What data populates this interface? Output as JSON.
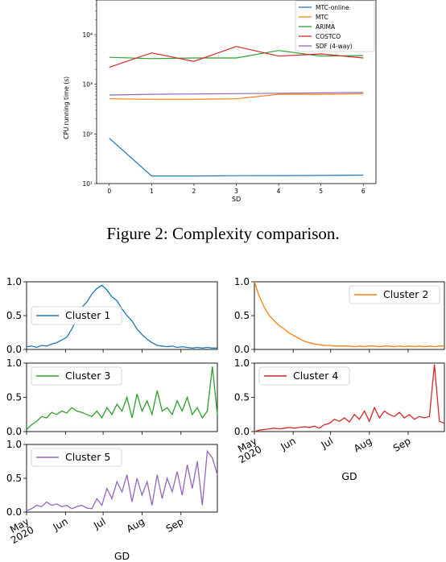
{
  "caption": "Figure 2: Complexity comparison.",
  "chart_data": [
    {
      "type": "line",
      "xlabel": "SD",
      "ylabel": "CPU running time (s)",
      "yscale": "log",
      "xlim": [
        -0.3,
        6.3
      ],
      "ylim": [
        10,
        50000
      ],
      "x_ticks": [
        0,
        1,
        2,
        3,
        4,
        5,
        6
      ],
      "y_ticks": [
        {
          "value": 10,
          "label": "10¹"
        },
        {
          "value": 100,
          "label": "10²"
        },
        {
          "value": 1000,
          "label": "10³"
        },
        {
          "value": 10000,
          "label": "10⁴"
        }
      ],
      "legend_position": "top-right",
      "x": [
        0,
        1,
        2,
        3,
        4,
        5,
        6
      ],
      "series": [
        {
          "name": "MTC-online",
          "color": "#1f77b4",
          "values": [
            82,
            14.2,
            14.2,
            14.4,
            14.5,
            14.6,
            14.8
          ]
        },
        {
          "name": "MTC",
          "color": "#ff7f0e",
          "values": [
            510,
            500,
            500,
            510,
            630,
            630,
            650
          ]
        },
        {
          "name": "ARIMA",
          "color": "#2ca02c",
          "values": [
            3500,
            3300,
            3400,
            3400,
            4800,
            3700,
            3800
          ]
        },
        {
          "name": "COSTCO",
          "color": "#d62728",
          "values": [
            2200,
            4300,
            2900,
            5800,
            3700,
            4100,
            3400
          ]
        },
        {
          "name": "SDF (4-way)",
          "color": "#9467bd",
          "values": [
            610,
            630,
            640,
            650,
            660,
            670,
            690
          ]
        }
      ]
    },
    {
      "type": "line",
      "grid": false,
      "ylim": [
        0,
        1
      ],
      "y_ticks": [
        "0.0",
        "0.5",
        "1.0"
      ],
      "x_ticks": [
        {
          "line1": "May",
          "line2": "2020"
        },
        {
          "line1": "Jun",
          "line2": ""
        },
        {
          "line1": "Jul",
          "line2": ""
        },
        {
          "line1": "Aug",
          "line2": ""
        },
        {
          "line1": "Sep",
          "line2": ""
        }
      ],
      "xlabel": "GD",
      "panels": [
        {
          "name": "Cluster 1",
          "color": "#1f77b4",
          "legend_position": "center-left",
          "x": [
            0,
            4,
            8,
            12,
            16,
            20,
            24,
            28,
            32,
            36,
            40,
            44,
            48,
            52,
            56,
            60,
            64,
            68,
            72,
            76,
            80,
            84,
            88,
            92,
            96,
            100,
            104,
            108,
            112,
            116,
            120,
            124,
            128,
            132,
            136,
            140,
            144,
            148,
            152
          ],
          "values": [
            0.04,
            0.05,
            0.03,
            0.06,
            0.05,
            0.08,
            0.1,
            0.14,
            0.18,
            0.3,
            0.45,
            0.62,
            0.7,
            0.82,
            0.9,
            0.95,
            0.88,
            0.78,
            0.72,
            0.6,
            0.5,
            0.42,
            0.3,
            0.22,
            0.15,
            0.1,
            0.06,
            0.05,
            0.04,
            0.05,
            0.03,
            0.04,
            0.03,
            0.02,
            0.03,
            0.02,
            0.03,
            0.02,
            0.02
          ]
        },
        {
          "name": "Cluster 2",
          "color": "#ff7f0e",
          "legend_position": "top-right",
          "x": [
            0,
            4,
            8,
            12,
            16,
            20,
            24,
            28,
            32,
            36,
            40,
            44,
            48,
            52,
            56,
            60,
            64,
            68,
            72,
            76,
            80,
            84,
            88,
            92,
            96,
            100,
            104,
            108,
            112,
            116,
            120,
            124,
            128,
            132,
            136,
            140,
            144,
            148,
            152
          ],
          "values": [
            1.0,
            0.78,
            0.62,
            0.5,
            0.42,
            0.35,
            0.3,
            0.24,
            0.2,
            0.16,
            0.12,
            0.1,
            0.08,
            0.07,
            0.06,
            0.06,
            0.05,
            0.05,
            0.05,
            0.05,
            0.04,
            0.05,
            0.04,
            0.05,
            0.05,
            0.04,
            0.05,
            0.05,
            0.04,
            0.05,
            0.04,
            0.05,
            0.04,
            0.05,
            0.04,
            0.05,
            0.04,
            0.05,
            0.05
          ]
        },
        {
          "name": "Cluster 3",
          "color": "#2ca02c",
          "legend_position": "top-left",
          "x": [
            0,
            4,
            8,
            12,
            16,
            20,
            24,
            28,
            32,
            36,
            40,
            44,
            48,
            52,
            56,
            60,
            64,
            68,
            72,
            76,
            80,
            84,
            88,
            92,
            96,
            100,
            104,
            108,
            112,
            116,
            120,
            124,
            128,
            132,
            136,
            140,
            144,
            148,
            152
          ],
          "values": [
            0.03,
            0.1,
            0.15,
            0.22,
            0.2,
            0.28,
            0.25,
            0.3,
            0.27,
            0.35,
            0.3,
            0.28,
            0.25,
            0.22,
            0.3,
            0.2,
            0.35,
            0.25,
            0.4,
            0.3,
            0.5,
            0.2,
            0.55,
            0.3,
            0.45,
            0.25,
            0.6,
            0.3,
            0.35,
            0.25,
            0.45,
            0.3,
            0.5,
            0.25,
            0.35,
            0.2,
            0.3,
            0.95,
            0.25
          ]
        },
        {
          "name": "Cluster 4",
          "color": "#d62728",
          "legend_position": "top-left",
          "x": [
            0,
            4,
            8,
            12,
            16,
            20,
            24,
            28,
            32,
            36,
            40,
            44,
            48,
            52,
            56,
            60,
            64,
            68,
            72,
            76,
            80,
            84,
            88,
            92,
            96,
            100,
            104,
            108,
            112,
            116,
            120,
            124,
            128,
            132,
            136,
            140,
            144,
            148,
            152
          ],
          "values": [
            0.0,
            0.02,
            0.03,
            0.04,
            0.05,
            0.04,
            0.05,
            0.06,
            0.05,
            0.06,
            0.07,
            0.06,
            0.08,
            0.05,
            0.1,
            0.12,
            0.18,
            0.15,
            0.2,
            0.14,
            0.25,
            0.18,
            0.3,
            0.15,
            0.35,
            0.2,
            0.3,
            0.25,
            0.22,
            0.28,
            0.2,
            0.25,
            0.18,
            0.22,
            0.2,
            0.22,
            0.98,
            0.15,
            0.12
          ]
        },
        {
          "name": "Cluster 5",
          "color": "#9467bd",
          "legend_position": "top-left",
          "x": [
            0,
            4,
            8,
            12,
            16,
            20,
            24,
            28,
            32,
            36,
            40,
            44,
            48,
            52,
            56,
            60,
            64,
            68,
            72,
            76,
            80,
            84,
            88,
            92,
            96,
            100,
            104,
            108,
            112,
            116,
            120,
            124,
            128,
            132,
            136,
            140,
            144,
            148,
            152
          ],
          "values": [
            0.02,
            0.05,
            0.1,
            0.08,
            0.15,
            0.1,
            0.12,
            0.08,
            0.1,
            0.05,
            0.08,
            0.1,
            0.06,
            0.05,
            0.2,
            0.1,
            0.35,
            0.2,
            0.45,
            0.3,
            0.55,
            0.15,
            0.5,
            0.25,
            0.45,
            0.1,
            0.55,
            0.2,
            0.5,
            0.3,
            0.6,
            0.25,
            0.7,
            0.35,
            0.75,
            0.1,
            0.9,
            0.8,
            0.55
          ]
        }
      ]
    }
  ]
}
